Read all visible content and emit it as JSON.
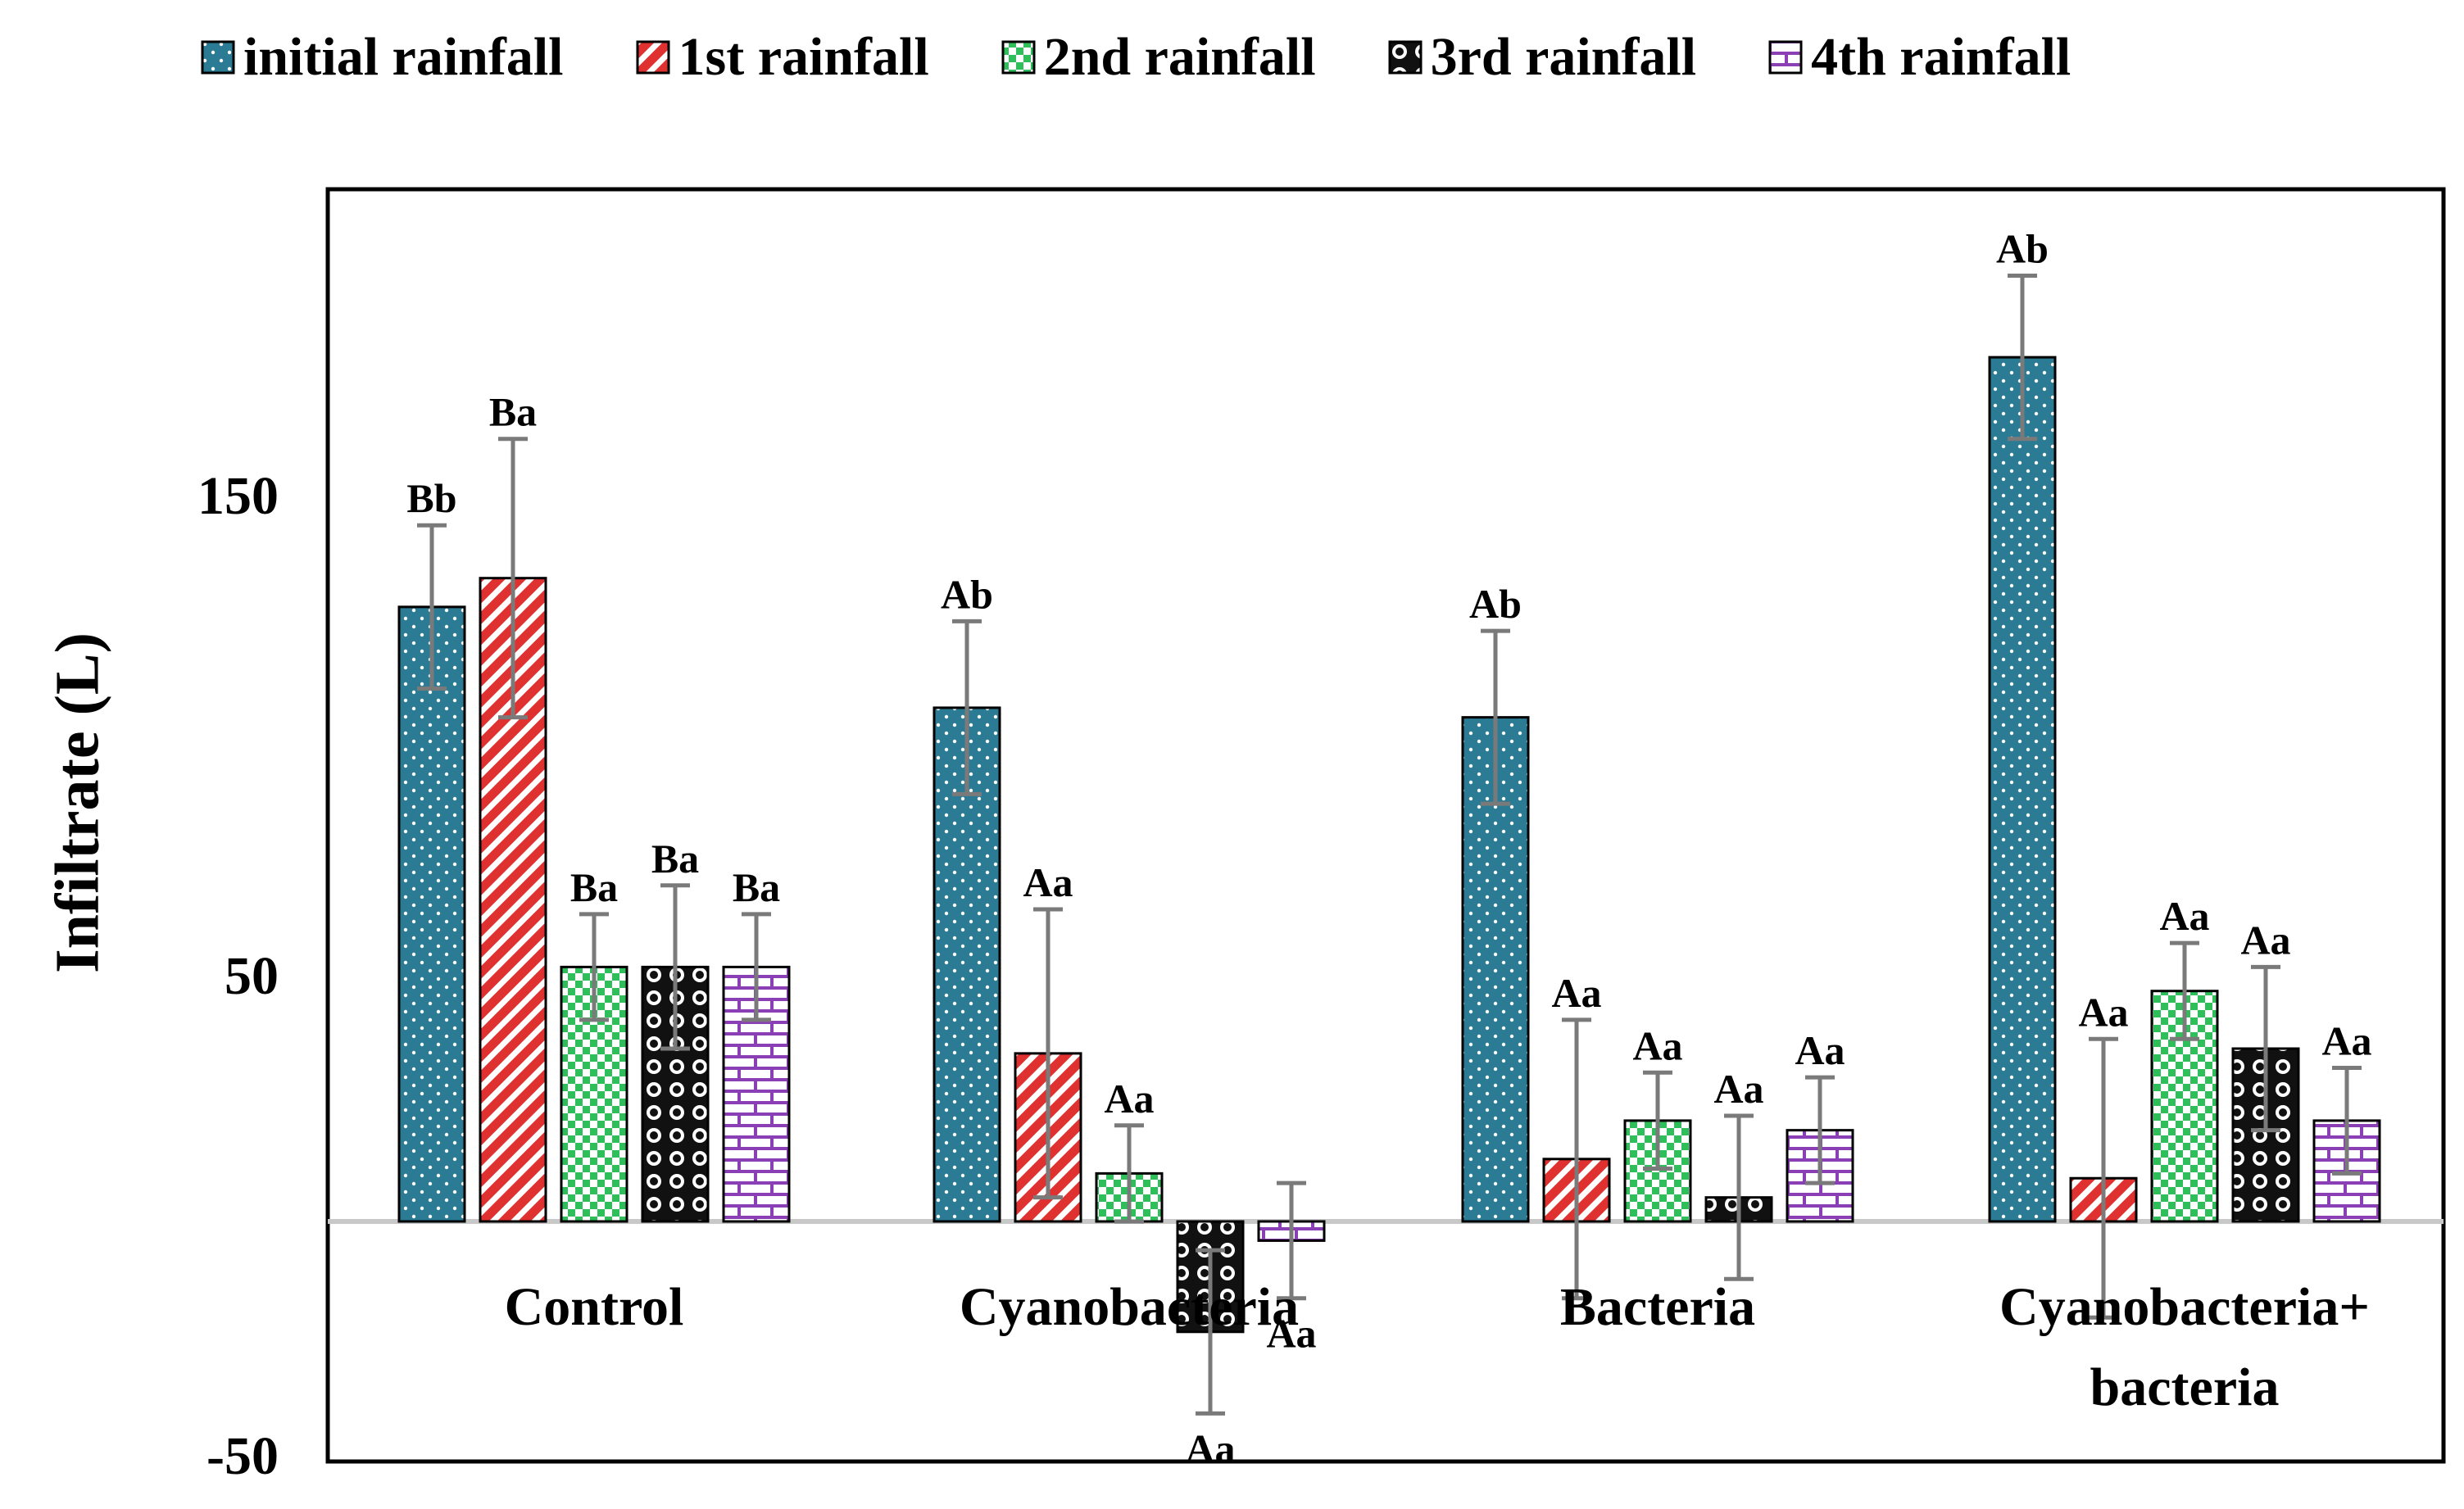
{
  "chart_data": {
    "type": "bar",
    "title": "",
    "xlabel": "",
    "ylabel": "Infiltrate (L)",
    "ylim": [
      -50,
      215
    ],
    "yticks": [
      -50,
      50,
      150
    ],
    "grid": false,
    "legend_position": "top",
    "categories": [
      "Control",
      "Cyanobacteria",
      "Bacteria",
      "Cyanobacteria+ bacteria"
    ],
    "series": [
      {
        "name": "initial rainfall",
        "color": "#2b7b95",
        "pattern": "dots",
        "values": [
          128,
          107,
          105,
          180
        ],
        "errors": [
          17,
          18,
          18,
          17
        ],
        "labels": [
          "Bb",
          "Ab",
          "Ab",
          "Ab"
        ]
      },
      {
        "name": "1st rainfall",
        "color": "#e03131",
        "pattern": "diagonal",
        "values": [
          134,
          35,
          13,
          9
        ],
        "errors": [
          29,
          30,
          29,
          29
        ],
        "labels": [
          "Ba",
          "Aa",
          "Aa",
          "Aa"
        ]
      },
      {
        "name": "2nd rainfall",
        "color": "#2fbf5a",
        "pattern": "checker",
        "values": [
          53,
          10,
          21,
          48
        ],
        "errors": [
          11,
          10,
          10,
          10
        ],
        "labels": [
          "Ba",
          "Aa",
          "Aa",
          "Aa"
        ]
      },
      {
        "name": "3rd rainfall",
        "color": "#111111",
        "pattern": "circles",
        "values": [
          53,
          -23,
          5,
          36
        ],
        "errors": [
          17,
          17,
          17,
          17
        ],
        "labels": [
          "Ba",
          "Aa",
          "Aa",
          "Aa"
        ]
      },
      {
        "name": "4th rainfall",
        "color": "#8a3fb5",
        "pattern": "brick",
        "values": [
          53,
          -4,
          19,
          21
        ],
        "errors": [
          11,
          12,
          11,
          11
        ],
        "labels": [
          "Ba",
          "Aa",
          "Aa",
          "Aa"
        ]
      }
    ]
  }
}
